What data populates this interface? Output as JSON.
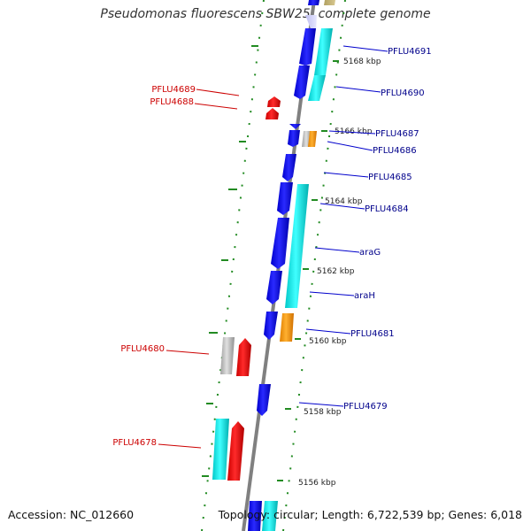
{
  "title": "Pseudomonas fluorescens SBW25, complete genome",
  "accession": "Accession: NC_012660",
  "summary": "Topology: circular; Length: 6,722,539 bp; Genes: 6,018",
  "colors": {
    "forward_cds": "#0000ff",
    "reverse_cds": "#ff0000",
    "other_gene": "#ffa500",
    "feature_cyan": "#00ffff",
    "misc": "#c0c0c0",
    "backbone": "#808080",
    "gc_dots": "#008000",
    "label_forward": "#00008b",
    "label_reverse": "#cc0000"
  },
  "kbp_ticks": [
    "5168 kbp",
    "5166 kbp",
    "5164 kbp",
    "5162 kbp",
    "5160 kbp",
    "5158 kbp",
    "5156 kbp"
  ],
  "labels_right": [
    "PFLU4691",
    "PFLU4690",
    "PFLU4687",
    "PFLU4686",
    "PFLU4685",
    "PFLU4684",
    "araG",
    "araH",
    "PFLU4681",
    "PFLU4679"
  ],
  "labels_left": [
    "PFLU4689",
    "PFLU4688",
    "PFLU4680",
    "PFLU4678"
  ]
}
